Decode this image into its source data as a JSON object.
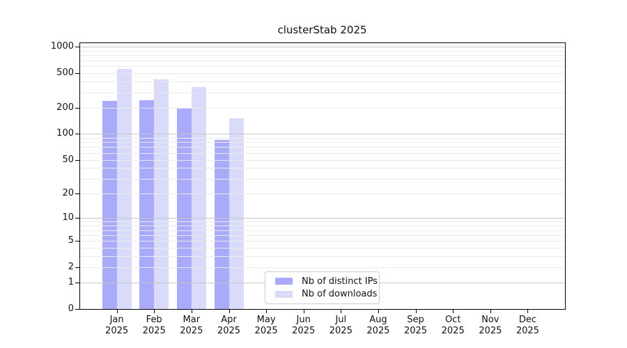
{
  "title": "clusterStab 2025",
  "colors": {
    "bar_ips": "#aaaafa",
    "bar_downloads": "#dadafa",
    "grid_minor": "#ebebeb",
    "grid_major": "#c6c6c6",
    "spine": "#000000",
    "legend_border": "#cbcbcb"
  },
  "legend": {
    "items": [
      {
        "label": "Nb of distinct IPs",
        "color_key": "bar_ips"
      },
      {
        "label": "Nb of downloads",
        "color_key": "bar_downloads"
      }
    ]
  },
  "chart_data": {
    "type": "bar",
    "title": "clusterStab 2025",
    "y_scale": "log10(value+1)",
    "ylim": [
      0,
      1117
    ],
    "grid": "horizontal",
    "legend_position": "inside-bottom-center",
    "months": [
      "Jan",
      "Feb",
      "Mar",
      "Apr",
      "May",
      "Jun",
      "Jul",
      "Aug",
      "Sep",
      "Oct",
      "Nov",
      "Dec"
    ],
    "year": "2025",
    "y_ticks": [
      0,
      1,
      2,
      5,
      10,
      20,
      50,
      100,
      200,
      500,
      1000
    ],
    "y_major_gridlines": [
      1,
      10,
      100,
      1000
    ],
    "y_minor_gridlines": [
      2,
      3,
      4,
      5,
      6,
      7,
      8,
      9,
      20,
      30,
      40,
      50,
      60,
      70,
      80,
      90,
      200,
      300,
      400,
      500,
      600,
      700,
      800,
      900
    ],
    "series": [
      {
        "name": "Nb of distinct IPs",
        "color_key": "bar_ips",
        "values": [
          240,
          243,
          198,
          85,
          0,
          0,
          0,
          0,
          0,
          0,
          0,
          0
        ]
      },
      {
        "name": "Nb of downloads",
        "color_key": "bar_downloads",
        "values": [
          555,
          420,
          345,
          150,
          0,
          0,
          0,
          0,
          0,
          0,
          0,
          0
        ]
      }
    ]
  }
}
